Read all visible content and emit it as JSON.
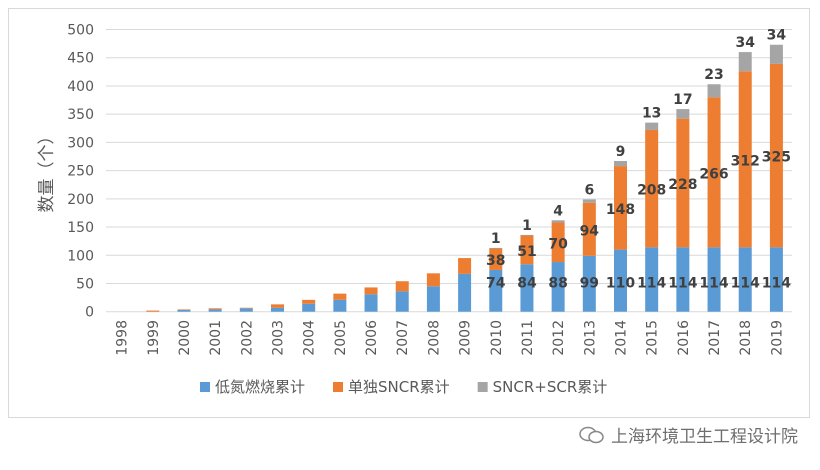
{
  "chart_data": {
    "type": "bar",
    "stacked": true,
    "ylabel": "数量（个）",
    "ylim": [
      0,
      500
    ],
    "yticks": [
      0,
      50,
      100,
      150,
      200,
      250,
      300,
      350,
      400,
      450,
      500
    ],
    "grid": true,
    "legend_position": "bottom",
    "categories": [
      "1998",
      "1999",
      "2000",
      "2001",
      "2002",
      "2003",
      "2004",
      "2005",
      "2006",
      "2007",
      "2008",
      "2009",
      "2010",
      "2011",
      "2012",
      "2013",
      "2014",
      "2015",
      "2016",
      "2017",
      "2018",
      "2019"
    ],
    "series": [
      {
        "name": "低氮燃烧累计",
        "color": "#5b9bd5",
        "values": [
          0,
          0,
          3,
          4,
          6,
          7,
          14,
          21,
          31,
          36,
          45,
          67,
          74,
          84,
          88,
          99,
          110,
          114,
          114,
          114,
          114,
          114
        ],
        "labeled_from": "2010"
      },
      {
        "name": "单独SNCR累计",
        "color": "#ed7d31",
        "values": [
          0,
          2,
          1,
          2,
          1,
          6,
          7,
          11,
          12,
          18,
          23,
          28,
          38,
          51,
          70,
          94,
          148,
          208,
          228,
          266,
          312,
          325
        ],
        "labeled_from": "2010"
      },
      {
        "name": "SNCR+SCR累计",
        "color": "#a5a5a5",
        "values": [
          0,
          0,
          0,
          0,
          0,
          0,
          0,
          0,
          0,
          0,
          0,
          0,
          1,
          1,
          4,
          6,
          9,
          13,
          17,
          23,
          34,
          34
        ],
        "labeled_from": "2010"
      }
    ]
  },
  "watermark": "上海环境卫生工程设计院"
}
